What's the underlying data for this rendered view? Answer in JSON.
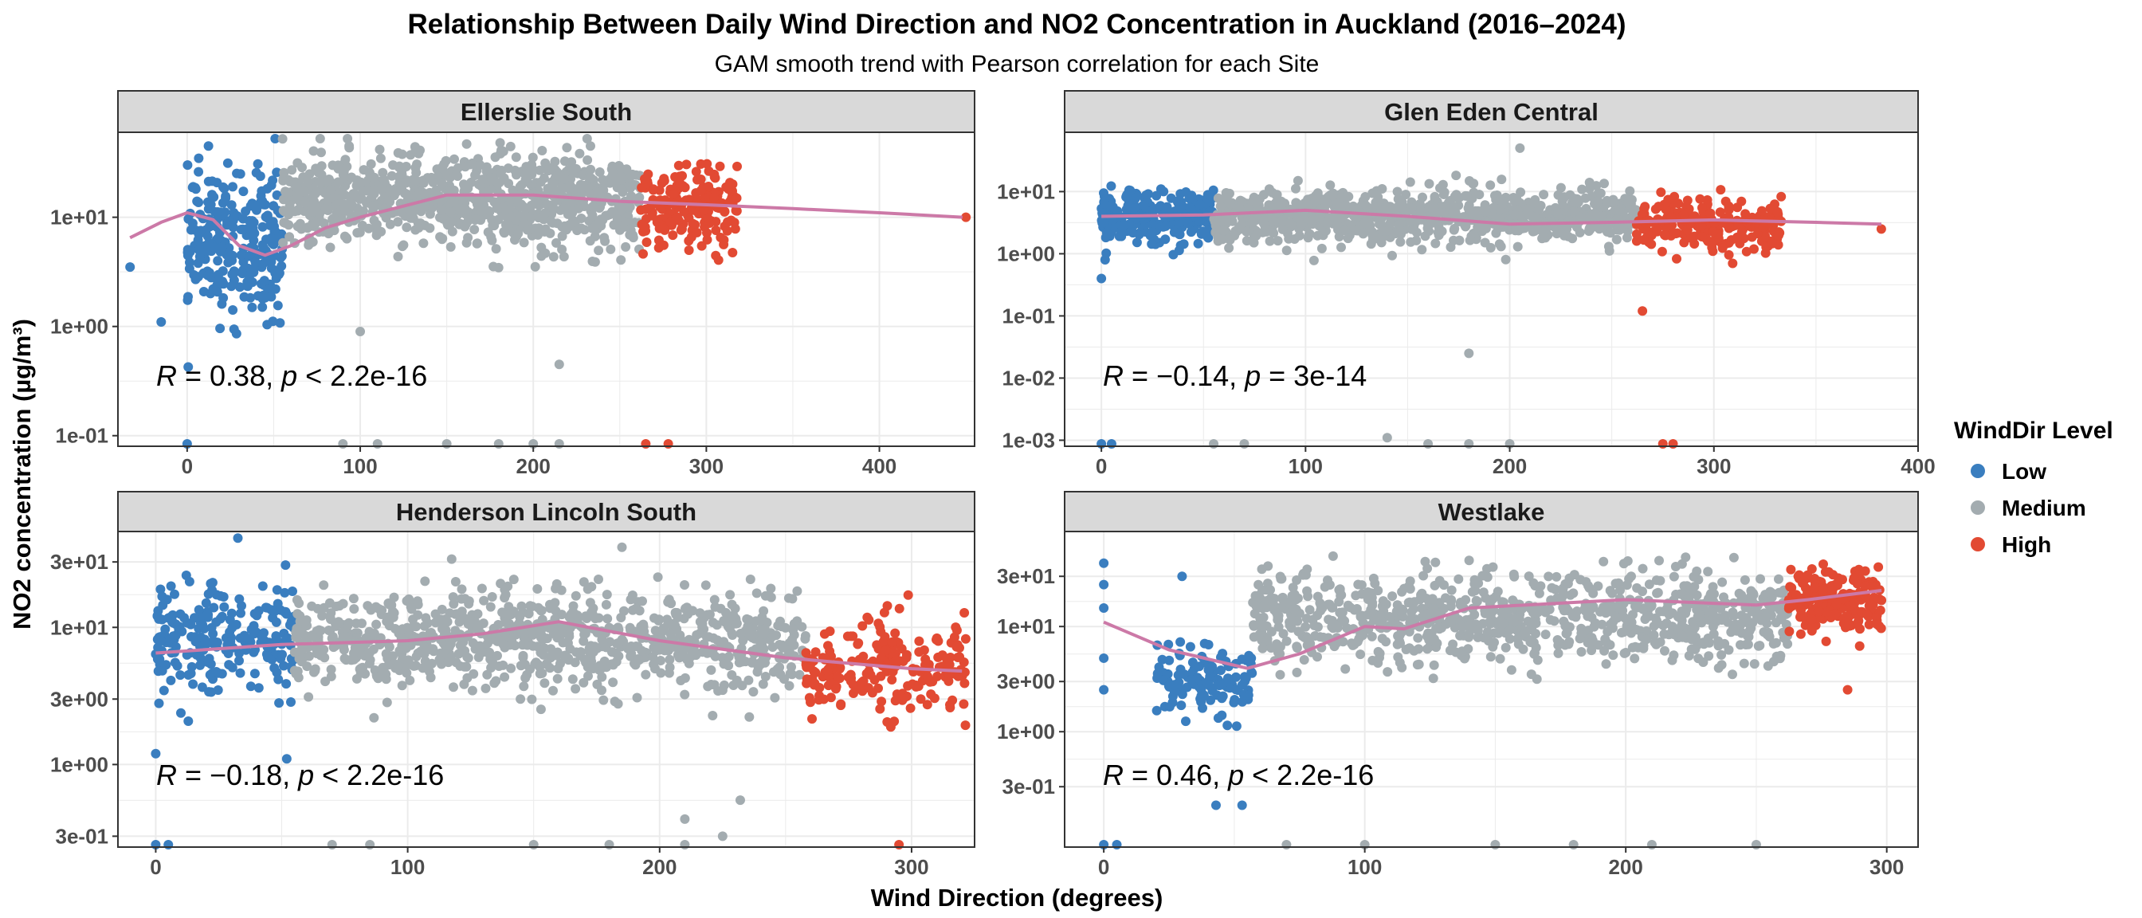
{
  "header": {
    "title": "Relationship Between Daily Wind Direction and  NO2  Concentration in Auckland (2016–2024)",
    "subtitle": "GAM smooth trend with Pearson correlation for each Site"
  },
  "axes": {
    "xlabel": "Wind Direction (degrees)",
    "ylabel": "NO2  concentration (µg/m³)"
  },
  "legend": {
    "title": "WindDir Level",
    "items": [
      {
        "label": "Low",
        "color": "#3a7ebf"
      },
      {
        "label": "Medium",
        "color": "#a3acb0"
      },
      {
        "label": "High",
        "color": "#e24a33"
      }
    ]
  },
  "colors": {
    "smooth": "#cc79a7",
    "strip": "#d9d9d9",
    "grid": "#ebebeb"
  },
  "chart_data": [
    {
      "type": "scatter",
      "panel": "Ellerslie South",
      "x_ticks": [
        0,
        100,
        200,
        300,
        400
      ],
      "xlim": [
        -40,
        455
      ],
      "y_scale": "log10",
      "y_ticks": [
        {
          "value": 0.1,
          "label": "1e-01"
        },
        {
          "value": 1,
          "label": "1e+00"
        },
        {
          "value": 10,
          "label": "1e+01"
        }
      ],
      "ylim": [
        0.08,
        60
      ],
      "smooth": [
        [
          -33,
          6.5
        ],
        [
          -15,
          9
        ],
        [
          0,
          11
        ],
        [
          15,
          9.5
        ],
        [
          30,
          5.5
        ],
        [
          45,
          4.5
        ],
        [
          60,
          5.5
        ],
        [
          80,
          8
        ],
        [
          100,
          10
        ],
        [
          150,
          16
        ],
        [
          200,
          16
        ],
        [
          250,
          14
        ],
        [
          300,
          13
        ],
        [
          350,
          12
        ],
        [
          400,
          11
        ],
        [
          448,
          10
        ]
      ],
      "stat": {
        "r_label": "R",
        "r": "= 0.38,",
        "p_label": "p",
        "p": "< 2.2e-16"
      },
      "clusters": [
        {
          "level": "Low",
          "x": [
            0,
            55
          ],
          "y_median": 6,
          "spread_decades": 0.55,
          "n": 260
        },
        {
          "level": "Medium",
          "x": [
            55,
            262
          ],
          "y_median": 14,
          "spread_decades": 0.35,
          "n": 900
        },
        {
          "level": "High",
          "x": [
            262,
            318
          ],
          "y_median": 12,
          "spread_decades": 0.3,
          "n": 200
        }
      ],
      "outliers": [
        [
          -33,
          3.5
        ],
        [
          -15,
          1.1
        ],
        [
          100,
          0.9
        ],
        [
          215,
          0.45
        ],
        [
          450,
          10
        ]
      ],
      "floor_points": [
        [
          0,
          0.082
        ],
        [
          90,
          0.082
        ],
        [
          110,
          0.082
        ],
        [
          150,
          0.082
        ],
        [
          180,
          0.082
        ],
        [
          200,
          0.082
        ],
        [
          215,
          0.082
        ],
        [
          265,
          0.082
        ],
        [
          278,
          0.082
        ]
      ]
    },
    {
      "type": "scatter",
      "panel": "Glen Eden Central",
      "x_ticks": [
        0,
        100,
        200,
        300,
        400
      ],
      "xlim": [
        -18,
        400
      ],
      "y_scale": "log10",
      "y_ticks": [
        {
          "value": 0.001,
          "label": "1e-03"
        },
        {
          "value": 0.01,
          "label": "1e-02"
        },
        {
          "value": 0.1,
          "label": "1e-01"
        },
        {
          "value": 1,
          "label": "1e+00"
        },
        {
          "value": 10,
          "label": "1e+01"
        }
      ],
      "ylim": [
        0.0008,
        90
      ],
      "smooth": [
        [
          0,
          4
        ],
        [
          50,
          4.2
        ],
        [
          100,
          5
        ],
        [
          150,
          4
        ],
        [
          200,
          3
        ],
        [
          250,
          3.2
        ],
        [
          300,
          3.5
        ],
        [
          350,
          3.2
        ],
        [
          382,
          3
        ]
      ],
      "stat": {
        "r_label": "R",
        "r": "= −0.14,",
        "p_label": "p",
        "p": "= 3e-14"
      },
      "clusters": [
        {
          "level": "Low",
          "x": [
            0,
            55
          ],
          "y_median": 4,
          "spread_decades": 0.35,
          "n": 250
        },
        {
          "level": "Medium",
          "x": [
            55,
            262
          ],
          "y_median": 4,
          "spread_decades": 0.35,
          "n": 900
        },
        {
          "level": "High",
          "x": [
            262,
            333
          ],
          "y_median": 3,
          "spread_decades": 0.35,
          "n": 220
        }
      ],
      "outliers": [
        [
          0,
          0.4
        ],
        [
          180,
          0.025
        ],
        [
          205,
          50
        ],
        [
          140,
          0.0011
        ],
        [
          382,
          2.5
        ],
        [
          265,
          0.12
        ]
      ],
      "floor_points": [
        [
          0,
          0.00085
        ],
        [
          5,
          0.00085
        ],
        [
          55,
          0.00085
        ],
        [
          70,
          0.00085
        ],
        [
          160,
          0.00085
        ],
        [
          180,
          0.00085
        ],
        [
          200,
          0.00085
        ],
        [
          275,
          0.00085
        ],
        [
          280,
          0.00085
        ]
      ]
    },
    {
      "type": "scatter",
      "panel": "Henderson Lincoln South",
      "x_ticks": [
        0,
        100,
        200,
        300
      ],
      "xlim": [
        -15,
        325
      ],
      "y_scale": "log10",
      "y_ticks": [
        {
          "value": 0.3,
          "label": "3e-01"
        },
        {
          "value": 1,
          "label": "1e+00"
        },
        {
          "value": 3,
          "label": "3e+00"
        },
        {
          "value": 10,
          "label": "1e+01"
        },
        {
          "value": 30,
          "label": "3e+01"
        }
      ],
      "ylim": [
        0.25,
        50
      ],
      "smooth": [
        [
          0,
          6.5
        ],
        [
          50,
          7.5
        ],
        [
          100,
          8
        ],
        [
          130,
          9
        ],
        [
          160,
          11
        ],
        [
          200,
          8
        ],
        [
          250,
          6
        ],
        [
          300,
          5
        ],
        [
          320,
          4.8
        ]
      ],
      "stat": {
        "r_label": "R",
        "r": "= −0.18,",
        "p_label": "p",
        "p": "< 2.2e-16"
      },
      "clusters": [
        {
          "level": "Low",
          "x": [
            0,
            55
          ],
          "y_median": 8,
          "spread_decades": 0.35,
          "n": 220
        },
        {
          "level": "Medium",
          "x": [
            55,
            258
          ],
          "y_median": 8,
          "spread_decades": 0.3,
          "n": 900
        },
        {
          "level": "High",
          "x": [
            258,
            322
          ],
          "y_median": 5,
          "spread_decades": 0.3,
          "n": 220
        }
      ],
      "outliers": [
        [
          0,
          1.2
        ],
        [
          52,
          1.1
        ],
        [
          210,
          0.4
        ],
        [
          225,
          0.3
        ],
        [
          232,
          0.55
        ]
      ],
      "floor_points": [
        [
          0,
          0.26
        ],
        [
          5,
          0.26
        ],
        [
          70,
          0.26
        ],
        [
          85,
          0.26
        ],
        [
          150,
          0.26
        ],
        [
          180,
          0.26
        ],
        [
          210,
          0.26
        ],
        [
          295,
          0.26
        ]
      ]
    },
    {
      "type": "scatter",
      "panel": "Westlake",
      "x_ticks": [
        0,
        100,
        200,
        300
      ],
      "xlim": [
        -15,
        312
      ],
      "y_scale": "log10",
      "y_ticks": [
        {
          "value": 0.3,
          "label": "3e-01"
        },
        {
          "value": 1,
          "label": "1e+00"
        },
        {
          "value": 3,
          "label": "3e+00"
        },
        {
          "value": 10,
          "label": "1e+01"
        },
        {
          "value": 30,
          "label": "3e+01"
        }
      ],
      "ylim": [
        0.08,
        80
      ],
      "smooth": [
        [
          0,
          11
        ],
        [
          25,
          6
        ],
        [
          55,
          4
        ],
        [
          75,
          5.5
        ],
        [
          100,
          10
        ],
        [
          115,
          9.5
        ],
        [
          140,
          15
        ],
        [
          200,
          18
        ],
        [
          250,
          16
        ],
        [
          270,
          18
        ],
        [
          298,
          22
        ]
      ],
      "stat": {
        "r_label": "R",
        "r": "= 0.46,",
        "p_label": "p",
        "p": "< 2.2e-16"
      },
      "clusters": [
        {
          "level": "Low",
          "x": [
            20,
            57
          ],
          "y_median": 3,
          "spread_decades": 0.3,
          "n": 120
        },
        {
          "level": "Medium",
          "x": [
            57,
            262
          ],
          "y_median": 12,
          "spread_decades": 0.35,
          "n": 900
        },
        {
          "level": "High",
          "x": [
            262,
            298
          ],
          "y_median": 18,
          "spread_decades": 0.25,
          "n": 200
        }
      ],
      "outliers": [
        [
          0,
          2.5
        ],
        [
          0,
          5
        ],
        [
          0,
          15
        ],
        [
          0,
          25
        ],
        [
          0,
          40
        ],
        [
          43,
          0.2
        ],
        [
          53,
          0.2
        ],
        [
          30,
          30
        ],
        [
          285,
          2.5
        ]
      ],
      "floor_points": [
        [
          0,
          0.1
        ],
        [
          5,
          0.1
        ],
        [
          70,
          0.1
        ],
        [
          100,
          0.1
        ],
        [
          150,
          0.1
        ],
        [
          180,
          0.1
        ],
        [
          210,
          0.1
        ],
        [
          250,
          0.1
        ]
      ]
    }
  ]
}
